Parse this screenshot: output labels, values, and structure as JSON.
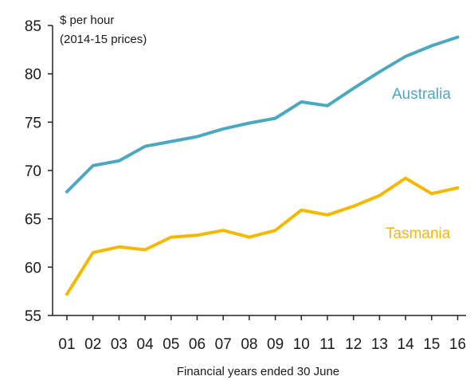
{
  "chart_data": {
    "type": "line",
    "ylabel_line1": "$ per hour",
    "ylabel_line2": "(2014-15 prices)",
    "xlabel": "Financial years ended 30 June",
    "categories": [
      "01",
      "02",
      "03",
      "04",
      "05",
      "06",
      "07",
      "08",
      "09",
      "10",
      "11",
      "12",
      "13",
      "14",
      "15",
      "16"
    ],
    "y_ticks": [
      "55",
      "60",
      "65",
      "70",
      "75",
      "80",
      "85"
    ],
    "ylim": [
      55,
      85
    ],
    "grid": false,
    "series": [
      {
        "name": "Australia",
        "color": "#4ba8c0",
        "values": [
          67.8,
          70.5,
          71.0,
          72.5,
          73.0,
          73.5,
          74.3,
          74.9,
          75.4,
          77.1,
          76.7,
          78.5,
          80.2,
          81.8,
          82.9,
          83.8
        ]
      },
      {
        "name": "Tasmania",
        "color": "#f5b800",
        "values": [
          57.2,
          61.5,
          62.1,
          61.8,
          63.1,
          63.3,
          63.8,
          63.1,
          63.8,
          65.9,
          65.4,
          66.3,
          67.4,
          69.2,
          67.6,
          68.2
        ]
      }
    ]
  }
}
